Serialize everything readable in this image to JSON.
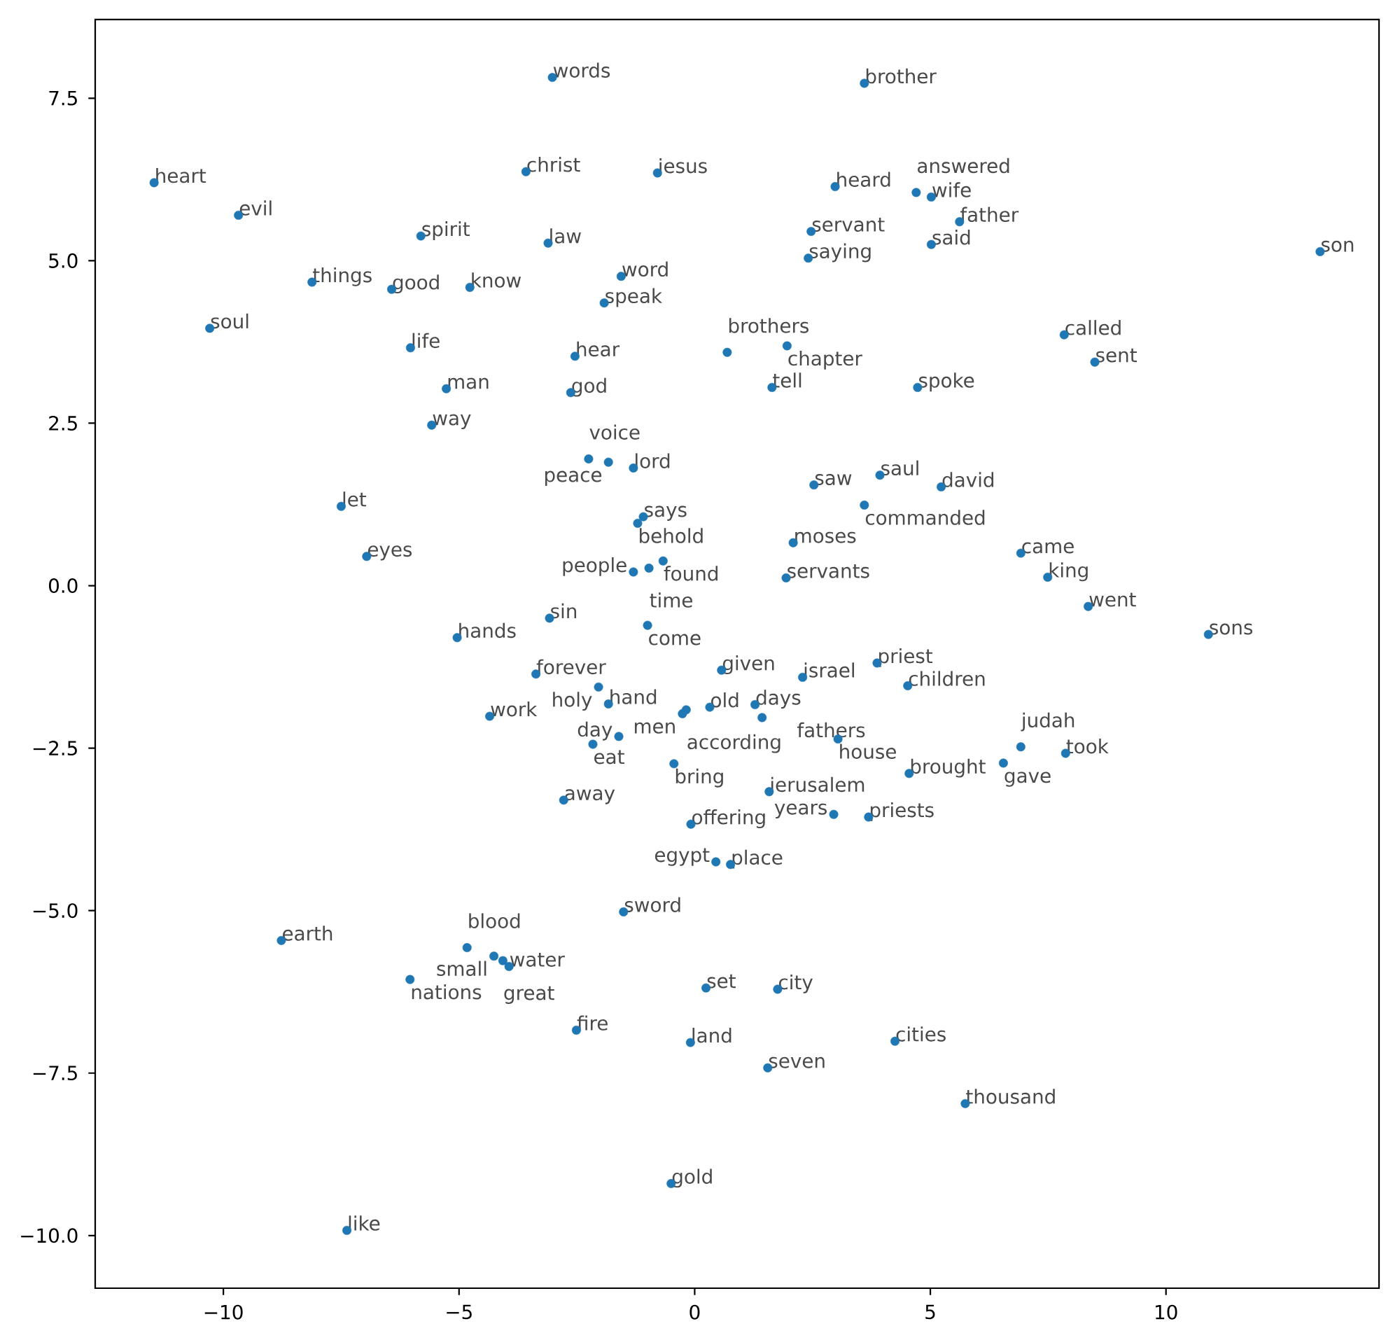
{
  "chart_data": {
    "type": "scatter",
    "color": "#1f77b4",
    "marker": "circle",
    "xlim": [
      -12.72,
      14.52
    ],
    "ylim": [
      -10.81,
      8.71
    ],
    "xticks": [
      {
        "value": -10,
        "label": "−10"
      },
      {
        "value": -5,
        "label": "−5"
      },
      0,
      5,
      10
    ],
    "yticks": [
      {
        "value": -10,
        "label": "−10.0"
      },
      {
        "value": -7.5,
        "label": "−7.5"
      },
      {
        "value": -5,
        "label": "−5.0"
      },
      {
        "value": -2.5,
        "label": "−2.5"
      },
      {
        "value": 0,
        "label": "0.0"
      },
      {
        "value": 2.5,
        "label": "2.5"
      },
      {
        "value": 5,
        "label": "5.0"
      },
      {
        "value": 7.5,
        "label": "7.5"
      }
    ],
    "x": [
      -11.47,
      -9.68,
      -10.29,
      -8.12,
      -6.43,
      -5.81,
      -4.77,
      -6.03,
      -5.27,
      -5.58,
      -7.5,
      -6.96,
      -5.04,
      -3.02,
      -3.58,
      -3.11,
      -0.79,
      -1.56,
      -1.92,
      -2.54,
      -2.63,
      3.6,
      2.98,
      4.7,
      5.02,
      5.62,
      5.02,
      2.47,
      2.41,
      0.69,
      1.96,
      1.64,
      4.73,
      13.27,
      7.84,
      8.49,
      -2.25,
      -1.83,
      -1.3,
      -1.09,
      -1.21,
      -0.67,
      -0.97,
      -1.3,
      2.53,
      3.93,
      5.23,
      3.6,
      2.09,
      1.94,
      6.92,
      7.49,
      8.35,
      10.9,
      -3.08,
      -1.0,
      -3.37,
      -2.04,
      -1.83,
      -4.35,
      0.57,
      2.29,
      3.87,
      4.52,
      -0.18,
      0.32,
      -0.26,
      1.28,
      1.43,
      3.04,
      -2.16,
      -1.61,
      -0.44,
      4.55,
      6.92,
      7.87,
      6.55,
      1.58,
      -2.78,
      -0.08,
      2.95,
      3.69,
      0.45,
      0.76,
      -1.51,
      -8.77,
      -4.83,
      -4.26,
      -4.07,
      -3.94,
      -6.04,
      0.24,
      1.76,
      -2.51,
      -0.09,
      1.55,
      4.25,
      5.74,
      -0.5,
      -7.38
    ],
    "values": [
      6.2,
      5.7,
      3.96,
      4.67,
      4.56,
      5.38,
      4.59,
      3.66,
      3.03,
      2.47,
      1.22,
      0.45,
      -0.8,
      7.82,
      6.37,
      5.27,
      6.35,
      4.76,
      4.35,
      3.53,
      2.97,
      7.73,
      6.14,
      6.05,
      5.98,
      5.6,
      5.25,
      5.45,
      5.04,
      3.59,
      3.69,
      3.05,
      3.05,
      5.14,
      3.86,
      3.44,
      1.95,
      1.9,
      1.81,
      1.06,
      0.96,
      0.38,
      0.27,
      0.21,
      1.55,
      1.7,
      1.52,
      1.24,
      0.66,
      0.12,
      0.5,
      0.13,
      -0.32,
      -0.75,
      -0.5,
      -0.61,
      -1.36,
      -1.56,
      -1.82,
      -2.01,
      -1.3,
      -1.41,
      -1.19,
      -1.54,
      -1.91,
      -1.87,
      -1.97,
      -1.83,
      -2.03,
      -2.36,
      -2.44,
      -2.32,
      -2.74,
      -2.89,
      -2.48,
      -2.58,
      -2.73,
      -3.17,
      -3.3,
      -3.67,
      -3.52,
      -3.56,
      -4.25,
      -4.29,
      -5.02,
      -5.46,
      -5.57,
      -5.7,
      -5.77,
      -5.86,
      -6.06,
      -6.19,
      -6.21,
      -6.84,
      -7.03,
      -7.42,
      -7.01,
      -7.97,
      -9.2,
      -9.92
    ],
    "annotations": [
      {
        "text": "heart",
        "x": -11.47,
        "y": 6.2
      },
      {
        "text": "evil",
        "x": -9.68,
        "y": 5.7
      },
      {
        "text": "soul",
        "x": -10.29,
        "y": 3.96
      },
      {
        "text": "things",
        "x": -8.12,
        "y": 4.67
      },
      {
        "text": "good",
        "x": -6.43,
        "y": 4.56
      },
      {
        "text": "spirit",
        "x": -5.81,
        "y": 5.38
      },
      {
        "text": "know",
        "x": -4.77,
        "y": 4.59
      },
      {
        "text": "life",
        "x": -6.03,
        "y": 3.66
      },
      {
        "text": "man",
        "x": -5.27,
        "y": 3.03
      },
      {
        "text": "way",
        "x": -5.58,
        "y": 2.47
      },
      {
        "text": "let",
        "x": -7.5,
        "y": 1.22
      },
      {
        "text": "eyes",
        "x": -6.96,
        "y": 0.45
      },
      {
        "text": "hands",
        "x": -5.04,
        "y": -0.8
      },
      {
        "text": "words",
        "x": -3.02,
        "y": 7.82
      },
      {
        "text": "christ",
        "x": -3.58,
        "y": 6.37
      },
      {
        "text": "law",
        "x": -3.11,
        "y": 5.27
      },
      {
        "text": "jesus",
        "x": -0.79,
        "y": 6.35
      },
      {
        "text": "word",
        "x": -1.56,
        "y": 4.76
      },
      {
        "text": "speak",
        "x": -1.92,
        "y": 4.35
      },
      {
        "text": "hear",
        "x": -2.54,
        "y": 3.53
      },
      {
        "text": "god",
        "x": -2.63,
        "y": 2.97
      },
      {
        "text": "brother",
        "x": 3.6,
        "y": 7.73
      },
      {
        "text": "heard",
        "x": 2.98,
        "y": 6.14
      },
      {
        "text": "answered",
        "x": 4.7,
        "y": 6.05
      },
      {
        "text": "wife",
        "x": 5.02,
        "y": 5.98
      },
      {
        "text": "father",
        "x": 5.62,
        "y": 5.6
      },
      {
        "text": "said",
        "x": 5.02,
        "y": 5.25
      },
      {
        "text": "servant",
        "x": 2.47,
        "y": 5.45
      },
      {
        "text": "saying",
        "x": 2.41,
        "y": 5.04
      },
      {
        "text": "brothers",
        "x": 0.69,
        "y": 3.59
      },
      {
        "text": "chapter",
        "x": 1.96,
        "y": 3.69
      },
      {
        "text": "tell",
        "x": 1.64,
        "y": 3.05
      },
      {
        "text": "spoke",
        "x": 4.73,
        "y": 3.05
      },
      {
        "text": "son",
        "x": 13.27,
        "y": 5.14
      },
      {
        "text": "called",
        "x": 7.84,
        "y": 3.86
      },
      {
        "text": "sent",
        "x": 8.49,
        "y": 3.44
      },
      {
        "text": "voice",
        "x": -2.25,
        "y": 1.95
      },
      {
        "text": "peace",
        "x": -1.83,
        "y": 1.9
      },
      {
        "text": "lord",
        "x": -1.3,
        "y": 1.81
      },
      {
        "text": "says",
        "x": -1.09,
        "y": 1.06
      },
      {
        "text": "behold",
        "x": -1.21,
        "y": 0.96
      },
      {
        "text": "found",
        "x": -0.67,
        "y": 0.38
      },
      {
        "text": "time",
        "x": -0.97,
        "y": 0.27
      },
      {
        "text": "people",
        "x": -1.3,
        "y": 0.21
      },
      {
        "text": "saw",
        "x": 2.53,
        "y": 1.55
      },
      {
        "text": "saul",
        "x": 3.93,
        "y": 1.7
      },
      {
        "text": "david",
        "x": 5.23,
        "y": 1.52
      },
      {
        "text": "commanded",
        "x": 3.6,
        "y": 1.24
      },
      {
        "text": "moses",
        "x": 2.09,
        "y": 0.66
      },
      {
        "text": "servants",
        "x": 1.94,
        "y": 0.12
      },
      {
        "text": "came",
        "x": 6.92,
        "y": 0.5
      },
      {
        "text": "king",
        "x": 7.49,
        "y": 0.13
      },
      {
        "text": "went",
        "x": 8.35,
        "y": -0.32
      },
      {
        "text": "sons",
        "x": 10.9,
        "y": -0.75
      },
      {
        "text": "sin",
        "x": -3.08,
        "y": -0.5
      },
      {
        "text": "come",
        "x": -1.0,
        "y": -0.61
      },
      {
        "text": "forever",
        "x": -3.37,
        "y": -1.36
      },
      {
        "text": "holy",
        "x": -2.04,
        "y": -1.56
      },
      {
        "text": "hand",
        "x": -1.83,
        "y": -1.82
      },
      {
        "text": "work",
        "x": -4.35,
        "y": -2.01
      },
      {
        "text": "given",
        "x": 0.57,
        "y": -1.3
      },
      {
        "text": "israel",
        "x": 2.29,
        "y": -1.41
      },
      {
        "text": "priest",
        "x": 3.87,
        "y": -1.19
      },
      {
        "text": "children",
        "x": 4.52,
        "y": -1.54
      },
      {
        "text": "according",
        "x": -0.18,
        "y": -1.91
      },
      {
        "text": "old",
        "x": 0.32,
        "y": -1.87
      },
      {
        "text": "men",
        "x": -0.26,
        "y": -1.97
      },
      {
        "text": "days",
        "x": 1.28,
        "y": -1.83
      },
      {
        "text": "fathers",
        "x": 1.43,
        "y": -2.03
      },
      {
        "text": "house",
        "x": 3.04,
        "y": -2.36
      },
      {
        "text": "eat",
        "x": -2.16,
        "y": -2.44
      },
      {
        "text": "day",
        "x": -1.61,
        "y": -2.32
      },
      {
        "text": "bring",
        "x": -0.44,
        "y": -2.74
      },
      {
        "text": "brought",
        "x": 4.55,
        "y": -2.89
      },
      {
        "text": "judah",
        "x": 6.92,
        "y": -2.48
      },
      {
        "text": "took",
        "x": 7.87,
        "y": -2.58
      },
      {
        "text": "gave",
        "x": 6.55,
        "y": -2.73
      },
      {
        "text": "jerusalem",
        "x": 1.58,
        "y": -3.17
      },
      {
        "text": "away",
        "x": -2.78,
        "y": -3.3
      },
      {
        "text": "offering",
        "x": -0.08,
        "y": -3.67
      },
      {
        "text": "years",
        "x": 2.95,
        "y": -3.52
      },
      {
        "text": "priests",
        "x": 3.69,
        "y": -3.56
      },
      {
        "text": "egypt",
        "x": 0.45,
        "y": -4.25
      },
      {
        "text": "place",
        "x": 0.76,
        "y": -4.29
      },
      {
        "text": "sword",
        "x": -1.51,
        "y": -5.02
      },
      {
        "text": "earth",
        "x": -8.77,
        "y": -5.46
      },
      {
        "text": "blood",
        "x": -4.83,
        "y": -5.57
      },
      {
        "text": "small",
        "x": -4.26,
        "y": -5.7
      },
      {
        "text": "great",
        "x": -4.07,
        "y": -5.77
      },
      {
        "text": "water",
        "x": -3.94,
        "y": -5.86
      },
      {
        "text": "nations",
        "x": -6.04,
        "y": -6.06
      },
      {
        "text": "set",
        "x": 0.24,
        "y": -6.19
      },
      {
        "text": "city",
        "x": 1.76,
        "y": -6.21
      },
      {
        "text": "fire",
        "x": -2.51,
        "y": -6.84
      },
      {
        "text": "land",
        "x": -0.09,
        "y": -7.03
      },
      {
        "text": "seven",
        "x": 1.55,
        "y": -7.42
      },
      {
        "text": "cities",
        "x": 4.25,
        "y": -7.01
      },
      {
        "text": "thousand",
        "x": 5.74,
        "y": -7.97
      },
      {
        "text": "gold",
        "x": -0.5,
        "y": -9.2
      },
      {
        "text": "like",
        "x": -7.38,
        "y": -9.92
      }
    ]
  }
}
